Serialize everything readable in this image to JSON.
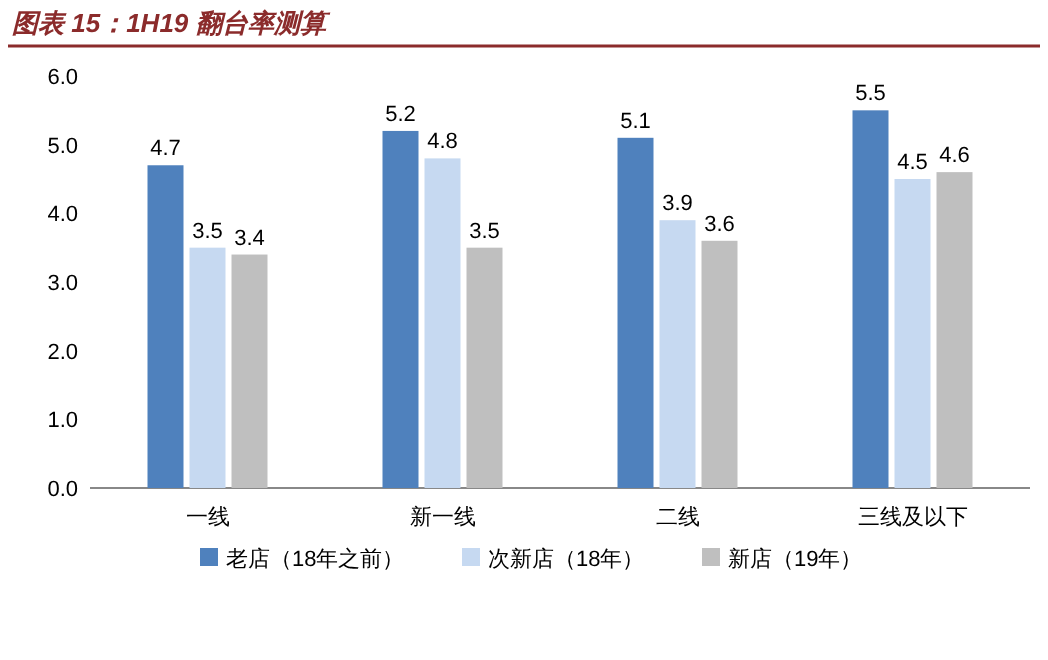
{
  "chart_data": {
    "type": "bar",
    "title": "图表 15：1H19 翻台率测算",
    "categories": [
      "一线",
      "新一线",
      "二线",
      "三线及以下"
    ],
    "series": [
      {
        "name": "老店（18年之前）",
        "color": "#4f81bd",
        "values": [
          4.7,
          5.2,
          5.1,
          5.5
        ]
      },
      {
        "name": "次新店（18年）",
        "color": "#c6d9f1",
        "values": [
          3.5,
          4.8,
          3.9,
          4.5
        ]
      },
      {
        "name": "新店（19年）",
        "color": "#bfbfbf",
        "values": [
          3.4,
          3.5,
          3.6,
          4.6
        ]
      }
    ],
    "ylim": [
      0,
      6
    ],
    "yticks": [
      {
        "value": 0,
        "label": "0.0"
      },
      {
        "value": 1,
        "label": "1.0"
      },
      {
        "value": 2,
        "label": "2.0"
      },
      {
        "value": 3,
        "label": "3.0"
      },
      {
        "value": 4,
        "label": "4.0"
      },
      {
        "value": 5,
        "label": "5.0"
      },
      {
        "value": 6,
        "label": "6.0"
      }
    ],
    "data_labels": true,
    "legend": "bottom"
  }
}
